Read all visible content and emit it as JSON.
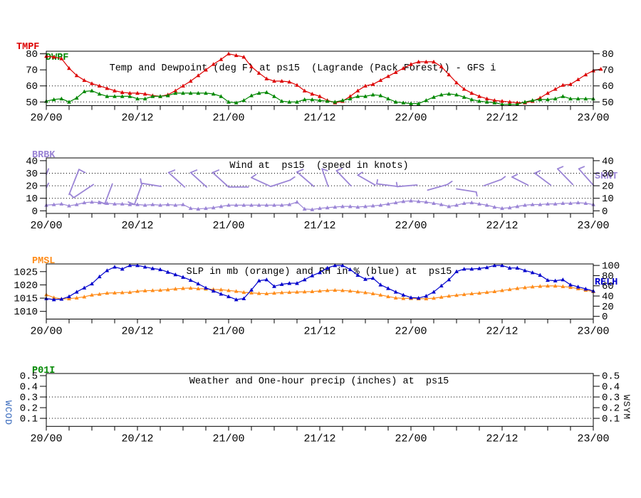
{
  "colors": {
    "tmpf": "#dd0000",
    "dwpf": "#008800",
    "wind": "#9b85d6",
    "pmsl": "#ff8c1a",
    "relh": "#0000cc",
    "wcod": "#3366bb",
    "wsym": "#111111",
    "axis": "#000000"
  },
  "chart_data": [
    {
      "id": "temp_dewpoint",
      "type": "line",
      "title": "Temp and Dewpoint (deg F) at ps15  (Lagrande (Pack Forest)) - GFS i",
      "title_center": 425,
      "left_labels": [
        {
          "text": "TMPF",
          "color": "#dd0000"
        },
        {
          "text": "DWPF",
          "color": "#008800"
        }
      ],
      "y_axis": {
        "ticks": [
          50,
          60,
          70,
          80
        ],
        "range": [
          47.7,
          81.6
        ],
        "grid": [
          50,
          60
        ]
      },
      "x_axis": {
        "tick_labels": [
          "20/00",
          "20/12",
          "21/00",
          "21/12",
          "22/00",
          "22/12",
          "23/00"
        ],
        "tick_hours": [
          0,
          12,
          24,
          36,
          48,
          60,
          72
        ],
        "minor_step": 3,
        "range": [
          0,
          72
        ]
      },
      "series": [
        {
          "name": "TMPF",
          "color": "#dd0000",
          "values": [
            78.5,
            78,
            77,
            71,
            66.5,
            63.5,
            61.5,
            60,
            58.5,
            57,
            56,
            55.5,
            55.5,
            55,
            54,
            53.5,
            54.5,
            57,
            60,
            63,
            66.5,
            70,
            73.5,
            76.5,
            80,
            79,
            78,
            72,
            68,
            64.5,
            63,
            63,
            62.5,
            60.5,
            57,
            55,
            53.5,
            51,
            49.5,
            50.5,
            53.5,
            57,
            60,
            61,
            63.5,
            66,
            68.5,
            71,
            73.5,
            75,
            75,
            75,
            72,
            67,
            62,
            58,
            55.5,
            53.5,
            52,
            51,
            50.5,
            50,
            49.5,
            49.5,
            50.5,
            52.5,
            55.5,
            58,
            60.5,
            61,
            64,
            67,
            69.5,
            70.5
          ]
        },
        {
          "name": "DWPF",
          "color": "#008800",
          "values": [
            50.5,
            51.5,
            52,
            50,
            52.5,
            56.5,
            57,
            55,
            53.5,
            53.5,
            53.5,
            53.5,
            52,
            52,
            53.5,
            53.5,
            54,
            55.5,
            55.5,
            55.5,
            55.5,
            55.5,
            55,
            53.5,
            50,
            49.5,
            51,
            54,
            55.5,
            56,
            53.5,
            50.5,
            50,
            50,
            51.5,
            51.5,
            51,
            50.5,
            50,
            51,
            52,
            53.5,
            53.5,
            54.5,
            54,
            52,
            50,
            49.5,
            49,
            49,
            51,
            53,
            54.5,
            55,
            54.5,
            53,
            51.5,
            50.5,
            50,
            49.5,
            48.5,
            48.5,
            48.5,
            50,
            51,
            51.5,
            51.5,
            52,
            53.5,
            52,
            52,
            52,
            52
          ]
        }
      ]
    },
    {
      "id": "wind",
      "type": "line",
      "title": "Wind at  ps15  (speed in knots)",
      "title_center": 448,
      "left_labels": [
        {
          "text": "BRBK",
          "color": "#9b85d6"
        }
      ],
      "right_label": {
        "text": "SKNT",
        "color": "#9b85d6"
      },
      "y_axis": {
        "ticks": [
          0,
          10,
          20,
          30,
          40
        ],
        "range": [
          -2.1,
          42.2
        ],
        "grid": [
          10,
          20,
          30
        ]
      },
      "x_axis": {
        "tick_labels": [
          "20/00",
          "20/12",
          "21/00",
          "21/12",
          "22/00",
          "22/12",
          "23/00"
        ],
        "tick_hours": [
          0,
          12,
          24,
          36,
          48,
          60,
          72
        ],
        "minor_step": 3,
        "range": [
          0,
          72
        ]
      },
      "series": [
        {
          "name": "SKNT",
          "color": "#9b85d6",
          "values": [
            4.5,
            5,
            5.5,
            4,
            5,
            6.5,
            7,
            6.5,
            6,
            5.5,
            5.5,
            5,
            5,
            4.5,
            5,
            4.5,
            5,
            4.5,
            5,
            2,
            1.5,
            2,
            2.5,
            3.5,
            4.5,
            4.5,
            4.5,
            4.5,
            4.5,
            4.5,
            4.5,
            4.5,
            5,
            7,
            1.5,
            1,
            2,
            2.5,
            3,
            3.5,
            3.5,
            3,
            3.5,
            4,
            4.5,
            5.5,
            6.5,
            7.5,
            8,
            7.5,
            7,
            6,
            5,
            3.5,
            4.5,
            6,
            6.5,
            5.5,
            4.5,
            3,
            2,
            2.5,
            3.5,
            4.5,
            5,
            5,
            5.5,
            5.5,
            6,
            6,
            6.5,
            6,
            5
          ]
        }
      ],
      "barbs": [
        {
          "s": [
            0,
            29,
            0.3,
            33.5
          ]
        },
        {
          "s": [
            0,
            18.5,
            0.3,
            22
          ]
        },
        {
          "s": [
            3.0,
            13,
            4.3,
            33
          ],
          "f": [
            4.3,
            33,
            5.1,
            30.5
          ]
        },
        {
          "s": [
            3.6,
            10.5,
            6.2,
            21
          ],
          "f": [
            3.6,
            10.5,
            3.1,
            13.5
          ]
        },
        {
          "s": [
            7.7,
            5.5,
            8.7,
            21.5
          ],
          "f": [
            7.7,
            5.5,
            6.9,
            7.5
          ]
        },
        {
          "s": [
            11.6,
            5,
            12.6,
            21.5
          ],
          "f": [
            11.6,
            5,
            10.8,
            7
          ]
        },
        {
          "s": [
            12.5,
            22,
            15.1,
            19.5
          ],
          "f": [
            12.5,
            22,
            12.4,
            25.5
          ]
        },
        {
          "s": [
            16.1,
            30.5,
            18.2,
            19
          ],
          "f": [
            16.1,
            30.5,
            16.9,
            32.5
          ]
        },
        {
          "s": [
            19.0,
            30.5,
            21.1,
            19
          ],
          "f": [
            19,
            30.5,
            19.8,
            32.5
          ]
        },
        {
          "s": [
            21.9,
            30.5,
            24.0,
            19
          ],
          "f": [
            21.9,
            30.5,
            22.7,
            32.5
          ]
        },
        {
          "s": [
            24.0,
            19,
            26.6,
            19
          ]
        },
        {
          "s": [
            27.0,
            26.5,
            29.5,
            19.5
          ],
          "f": [
            27,
            26.5,
            27.6,
            29
          ]
        },
        {
          "s": [
            29.6,
            19.5,
            32.1,
            24.5
          ],
          "f": [
            32.1,
            24.5,
            32.7,
            27
          ]
        },
        {
          "s": [
            33.0,
            31,
            35.2,
            19.5
          ],
          "f": [
            33,
            31,
            33.8,
            33
          ]
        },
        {
          "s": [
            36.3,
            33.5,
            37.1,
            19.5
          ],
          "f": [
            36.3,
            33.5,
            37,
            32
          ]
        },
        {
          "s": [
            38.2,
            32,
            40.1,
            20
          ],
          "f": [
            38.2,
            32,
            38.9,
            33.8
          ]
        },
        {
          "s": [
            41.0,
            28.5,
            43.3,
            20.5
          ],
          "f": [
            41,
            28.5,
            41.6,
            30.7
          ]
        },
        {
          "s": [
            43.5,
            21.5,
            46.2,
            19.5
          ],
          "f": [
            43.5,
            21.5,
            43.6,
            24.8
          ]
        },
        {
          "s": [
            46.2,
            19.3,
            48.8,
            20.6
          ],
          "f": [
            46.2,
            19.3,
            46.1,
            22.6
          ]
        },
        {
          "s": [
            50.2,
            16.5,
            52.8,
            21
          ],
          "f": [
            52.8,
            21,
            53.4,
            23.5
          ]
        },
        {
          "s": [
            54.0,
            17.5,
            56.6,
            15
          ],
          "f": [
            56.6,
            15,
            56.7,
            11.8
          ]
        },
        {
          "s": [
            57.6,
            20,
            59.9,
            25
          ],
          "f": [
            59.9,
            25,
            60.4,
            27.3
          ]
        },
        {
          "s": [
            61.3,
            27,
            63.4,
            20.5
          ],
          "f": [
            61.3,
            27,
            62,
            29
          ]
        },
        {
          "s": [
            64.3,
            30,
            66.4,
            20.5
          ],
          "f": [
            64.3,
            30,
            65,
            32
          ]
        },
        {
          "s": [
            67.3,
            33.5,
            69.3,
            21
          ],
          "f": [
            67.3,
            33.5,
            68,
            35.3
          ]
        },
        {
          "s": [
            70.1,
            33.5,
            72,
            20.5
          ],
          "f": [
            70.1,
            33.5,
            70.8,
            35.3
          ]
        }
      ]
    },
    {
      "id": "slp_rh",
      "type": "line",
      "title": "SLP in mb (orange) and RH in % (blue) at  ps15",
      "title_center": 448,
      "left_labels": [
        {
          "text": "PMSL",
          "color": "#ff8c1a"
        }
      ],
      "right_label": {
        "text": "RELH",
        "color": "#0000cc"
      },
      "y_axis": {
        "ticks": [
          1010,
          1015,
          1020,
          1025
        ],
        "range": [
          1007.1,
          1027.9
        ],
        "grid": []
      },
      "y2_axis": {
        "ticks": [
          0,
          20,
          40,
          60,
          80,
          100
        ],
        "range": [
          -5.3,
          102.9
        ]
      },
      "x_axis": {
        "tick_labels": [
          "20/00",
          "20/12",
          "21/00",
          "21/12",
          "22/00",
          "22/12",
          "23/00"
        ],
        "tick_hours": [
          0,
          12,
          24,
          36,
          48,
          60,
          72
        ],
        "minor_step": 3,
        "range": [
          0,
          72
        ]
      },
      "series": [
        {
          "name": "PMSL",
          "color": "#ff8c1a",
          "axis": "y",
          "values": [
            1016.3,
            1015.2,
            1014.7,
            1014.8,
            1015.1,
            1015.5,
            1016.2,
            1016.5,
            1016.9,
            1017,
            1017.1,
            1017.2,
            1017.6,
            1017.8,
            1017.9,
            1018,
            1018.2,
            1018.5,
            1018.7,
            1018.8,
            1018.6,
            1018.5,
            1018.3,
            1018.2,
            1017.9,
            1017.6,
            1017.2,
            1017,
            1016.8,
            1016.7,
            1016.9,
            1017.1,
            1017.2,
            1017.3,
            1017.4,
            1017.5,
            1017.7,
            1017.9,
            1018,
            1017.9,
            1017.7,
            1017.4,
            1017.1,
            1016.7,
            1016.2,
            1015.6,
            1015.1,
            1014.9,
            1014.9,
            1014.8,
            1014.8,
            1015,
            1015.4,
            1015.8,
            1016.1,
            1016.4,
            1016.7,
            1016.9,
            1017.2,
            1017.5,
            1017.9,
            1018.3,
            1018.7,
            1019,
            1019.3,
            1019.5,
            1019.6,
            1019.6,
            1019.4,
            1019.1,
            1018.6,
            1018,
            1017.5
          ]
        },
        {
          "name": "RELH",
          "color": "#0000cc",
          "axis": "y2",
          "values": [
            35,
            33,
            34,
            39,
            48,
            56,
            64,
            78,
            90,
            97,
            93,
            100,
            100,
            97,
            94,
            92,
            87,
            82,
            77,
            71,
            64,
            56,
            50,
            44,
            39,
            33,
            35,
            52,
            70,
            72,
            59,
            63,
            65,
            65,
            72,
            80,
            86,
            95,
            100,
            100,
            92,
            81,
            73,
            75,
            62,
            55,
            48,
            42,
            37,
            36,
            40,
            48,
            60,
            72,
            88,
            93,
            93,
            94,
            96,
            100,
            100,
            95,
            95,
            90,
            86,
            81,
            71,
            70,
            72,
            62,
            58,
            54,
            50
          ]
        }
      ]
    },
    {
      "id": "precip",
      "type": "line",
      "title": "Weather and One-hour precip (inches) at  ps15",
      "title_center": 448,
      "left_labels": [
        {
          "text": "P01I",
          "color": "#008800"
        }
      ],
      "side_labels": {
        "left": "WCOD",
        "right": "WSYM"
      },
      "y_axis": {
        "ticks": [
          0.1,
          0.2,
          0.3,
          0.4,
          0.5
        ],
        "range": [
          0.025,
          0.52
        ],
        "grid": [
          0.1,
          0.3
        ]
      },
      "x_axis": {
        "tick_labels": [
          "20/00",
          "20/12",
          "21/00",
          "21/12",
          "22/00",
          "22/12",
          "23/00"
        ],
        "tick_hours": [
          0,
          12,
          24,
          36,
          48,
          60,
          72
        ],
        "minor_step": 3,
        "range": [
          0,
          72
        ]
      },
      "series": []
    }
  ]
}
